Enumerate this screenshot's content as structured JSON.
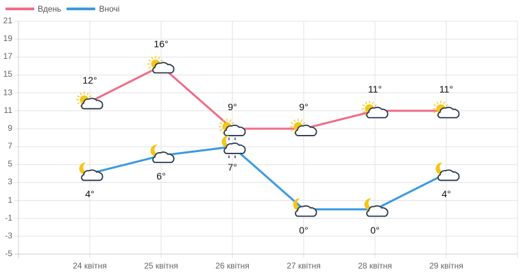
{
  "legend": [
    {
      "label": "Вдень",
      "color": "#f06d87"
    },
    {
      "label": "Вночі",
      "color": "#3c9be0"
    }
  ],
  "colors": {
    "grid": "#e3e3e3",
    "axis": "#cfcfcf",
    "tick_text": "#666666",
    "cloud_stroke": "#2b3a4e",
    "sun": "#f5c518",
    "moon": "#f5c518",
    "rain": "#5a6a7e"
  },
  "chart_data": {
    "type": "line",
    "title": "",
    "xlabel": "",
    "ylabel": "",
    "categories": [
      "24 квітня",
      "25 квітня",
      "26 квітня",
      "27 квітня",
      "28 квітня",
      "29 квітня"
    ],
    "y_ticks": [
      21,
      19,
      17,
      15,
      13,
      11,
      9,
      7,
      5,
      3,
      1,
      -1,
      -3,
      -5
    ],
    "ylim": [
      -5,
      21
    ],
    "grid": true,
    "legend_position": "top-left",
    "series": [
      {
        "name": "Вдень",
        "color": "#f06d87",
        "values": [
          12,
          16,
          9,
          9,
          11,
          11
        ],
        "labels": [
          "12°",
          "16°",
          "9°",
          "9°",
          "11°",
          "11°"
        ],
        "icons": [
          "partly-cloudy-day",
          "partly-cloudy-day",
          "partly-cloudy-day-rain",
          "partly-cloudy-day",
          "partly-cloudy-day",
          "partly-cloudy-day"
        ],
        "label_position": "above"
      },
      {
        "name": "Вночі",
        "color": "#3c9be0",
        "values": [
          4,
          6,
          7,
          0,
          0,
          4
        ],
        "labels": [
          "4°",
          "6°",
          "7°",
          "0°",
          "0°",
          "4°"
        ],
        "icons": [
          "partly-cloudy-night",
          "partly-cloudy-night",
          "partly-cloudy-night-rain",
          "partly-cloudy-night",
          "partly-cloudy-night",
          "partly-cloudy-night"
        ],
        "label_position": "below"
      }
    ]
  }
}
